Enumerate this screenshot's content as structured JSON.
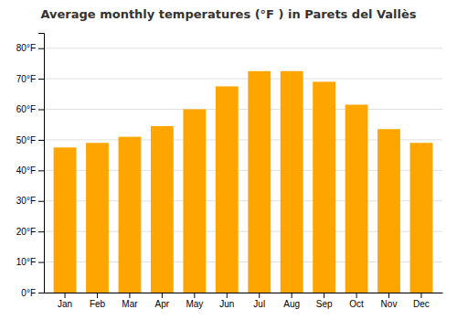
{
  "chart_data": {
    "type": "bar",
    "title": "Average monthly temperatures (°F ) in Parets del Vallès",
    "categories": [
      "Jan",
      "Feb",
      "Mar",
      "Apr",
      "May",
      "Jun",
      "Jul",
      "Aug",
      "Sep",
      "Oct",
      "Nov",
      "Dec"
    ],
    "values": [
      47.5,
      49.0,
      51.0,
      54.5,
      60.0,
      67.5,
      72.5,
      72.5,
      69.0,
      61.5,
      53.5,
      49.0
    ],
    "color": "#FFA500",
    "ylim": [
      0,
      85
    ],
    "yticks": [
      {
        "value": 0,
        "label": "0°F"
      },
      {
        "value": 10,
        "label": "10°F"
      },
      {
        "value": 20,
        "label": "20°F"
      },
      {
        "value": 30,
        "label": "30°F"
      },
      {
        "value": 40,
        "label": "40°F"
      },
      {
        "value": 50,
        "label": "50°F"
      },
      {
        "value": 60,
        "label": "60°F"
      },
      {
        "value": 70,
        "label": "70°F"
      },
      {
        "value": 80,
        "label": "80°F"
      }
    ],
    "grid": true
  }
}
